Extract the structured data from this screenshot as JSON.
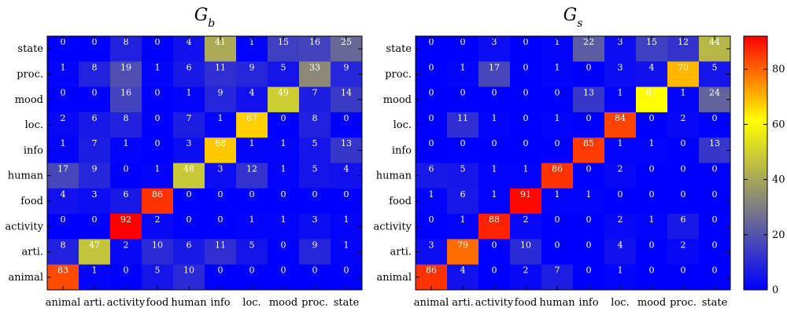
{
  "chart_data": [
    {
      "type": "heatmap",
      "title": "G",
      "title_subscript": "b",
      "xcategories": [
        "animal",
        "arti.",
        "activity",
        "food",
        "human",
        "info",
        "loc.",
        "mood",
        "proc.",
        "state"
      ],
      "ycategories": [
        "state",
        "proc.",
        "mood",
        "loc.",
        "info",
        "human",
        "food",
        "activity",
        "arti.",
        "animal"
      ],
      "values": [
        [
          0,
          0,
          8,
          0,
          4,
          41,
          1,
          15,
          16,
          25
        ],
        [
          1,
          8,
          19,
          1,
          6,
          11,
          9,
          5,
          33,
          9
        ],
        [
          0,
          0,
          16,
          0,
          1,
          9,
          4,
          49,
          7,
          14
        ],
        [
          2,
          6,
          8,
          0,
          7,
          1,
          67,
          0,
          8,
          0
        ],
        [
          1,
          7,
          1,
          0,
          3,
          68,
          1,
          1,
          5,
          13
        ],
        [
          17,
          9,
          0,
          1,
          48,
          3,
          12,
          1,
          5,
          4
        ],
        [
          4,
          3,
          6,
          86,
          0,
          0,
          0,
          0,
          0,
          0
        ],
        [
          0,
          0,
          92,
          2,
          0,
          0,
          1,
          1,
          3,
          1
        ],
        [
          8,
          47,
          2,
          10,
          6,
          11,
          5,
          0,
          9,
          1
        ],
        [
          83,
          1,
          0,
          5,
          10,
          0,
          0,
          0,
          0,
          0
        ]
      ]
    },
    {
      "type": "heatmap",
      "title": "G",
      "title_subscript": "s",
      "xcategories": [
        "animal",
        "arti.",
        "activity",
        "food",
        "human",
        "info",
        "loc.",
        "mood",
        "proc.",
        "state"
      ],
      "ycategories": [
        "state",
        "proc.",
        "mood",
        "loc.",
        "info",
        "human",
        "food",
        "activity",
        "arti.",
        "animal"
      ],
      "values": [
        [
          0,
          0,
          3,
          0,
          1,
          22,
          3,
          15,
          12,
          44
        ],
        [
          0,
          1,
          17,
          0,
          1,
          0,
          3,
          4,
          70,
          5
        ],
        [
          0,
          0,
          0,
          0,
          0,
          13,
          1,
          61,
          1,
          24
        ],
        [
          0,
          11,
          1,
          0,
          1,
          0,
          84,
          0,
          2,
          0
        ],
        [
          0,
          0,
          0,
          0,
          0,
          85,
          1,
          1,
          0,
          13
        ],
        [
          6,
          5,
          1,
          1,
          86,
          0,
          2,
          0,
          0,
          0
        ],
        [
          1,
          6,
          1,
          91,
          1,
          1,
          0,
          0,
          0,
          0
        ],
        [
          0,
          1,
          88,
          2,
          0,
          0,
          2,
          1,
          6,
          0
        ],
        [
          3,
          79,
          0,
          10,
          0,
          0,
          4,
          0,
          2,
          0
        ],
        [
          86,
          4,
          0,
          2,
          7,
          0,
          1,
          0,
          0,
          0
        ]
      ]
    }
  ],
  "colorbar": {
    "range": [
      0,
      92
    ],
    "ticks": [
      "0",
      "20",
      "40",
      "60",
      "80"
    ],
    "stops": [
      "#0000ff",
      "#808080",
      "#ffff00",
      "#ff0000"
    ]
  }
}
